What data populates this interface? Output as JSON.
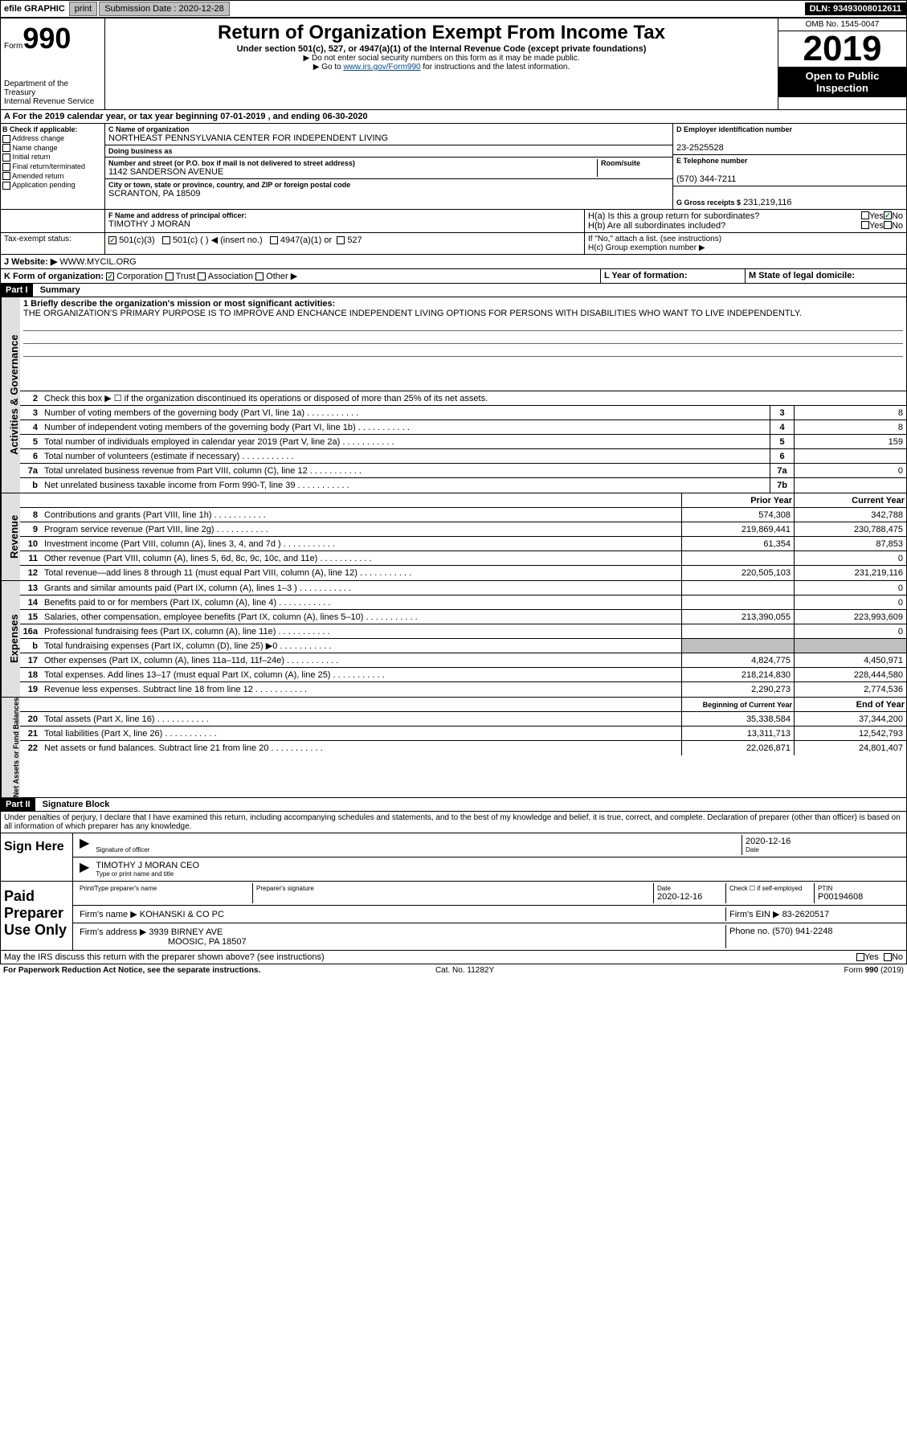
{
  "topbar": {
    "efile": "efile GRAPHIC",
    "print": "print",
    "sub_label": "Submission Date : 2020-12-28",
    "dln": "DLN: 93493008012611"
  },
  "header": {
    "form_word": "Form",
    "form_num": "990",
    "dept": "Department of the Treasury",
    "irs": "Internal Revenue Service",
    "title": "Return of Organization Exempt From Income Tax",
    "subtitle": "Under section 501(c), 527, or 4947(a)(1) of the Internal Revenue Code (except private foundations)",
    "note1": "▶ Do not enter social security numbers on this form as it may be made public.",
    "note2_pre": "▶ Go to ",
    "note2_link": "www.irs.gov/Form990",
    "note2_post": " for instructions and the latest information.",
    "omb": "OMB No. 1545-0047",
    "year": "2019",
    "open": "Open to Public Inspection"
  },
  "period": "A For the 2019 calendar year, or tax year beginning 07-01-2019   , and ending 06-30-2020",
  "boxB": {
    "label": "B Check if applicable:",
    "opts": [
      "Address change",
      "Name change",
      "Initial return",
      "Final return/terminated",
      "Amended return",
      "Application pending"
    ]
  },
  "boxC": {
    "name_label": "C Name of organization",
    "name": "NORTHEAST PENNSYLVANIA CENTER FOR INDEPENDENT LIVING",
    "dba_label": "Doing business as",
    "dba": "",
    "street_label": "Number and street (or P.O. box if mail is not delivered to street address)",
    "room_label": "Room/suite",
    "street": "1142 SANDERSON AVENUE",
    "city_label": "City or town, state or province, country, and ZIP or foreign postal code",
    "city": "SCRANTON, PA  18509"
  },
  "boxD": {
    "label": "D Employer identification number",
    "value": "23-2525528"
  },
  "boxE": {
    "label": "E Telephone number",
    "value": "(570) 344-7211"
  },
  "boxG": {
    "label": "G Gross receipts $",
    "value": "231,219,116"
  },
  "boxF": {
    "label": "F  Name and address of principal officer:",
    "value": "TIMOTHY J MORAN"
  },
  "boxH": {
    "a": "H(a)  Is this a group return for subordinates?",
    "b": "H(b)  Are all subordinates included?",
    "b_note": "If \"No,\" attach a list. (see instructions)",
    "c": "H(c)  Group exemption number ▶",
    "yes": "Yes",
    "no": "No"
  },
  "taxExempt": {
    "label": "Tax-exempt status:",
    "o1": "501(c)(3)",
    "o2": "501(c) (  ) ◀ (insert no.)",
    "o3": "4947(a)(1) or",
    "o4": "527"
  },
  "website": {
    "label": "J   Website: ▶",
    "value": "WWW.MYCIL.ORG"
  },
  "lineK": {
    "label": "K Form of organization:",
    "corp": "Corporation",
    "trust": "Trust",
    "assoc": "Association",
    "other": "Other ▶"
  },
  "lineL": "L Year of formation:",
  "lineM": "M State of legal domicile:",
  "part1": {
    "num": "Part I",
    "title": "Summary"
  },
  "activities": {
    "label": "Activities & Governance",
    "l1": "1  Briefly describe the organization's mission or most significant activities:",
    "mission": "THE ORGANIZATION'S PRIMARY PURPOSE IS TO IMPROVE AND ENCHANCE INDEPENDENT LIVING OPTIONS FOR PERSONS WITH DISABILITIES WHO WANT TO LIVE INDEPENDENTLY.",
    "l2": "Check this box ▶ ☐  if the organization discontinued its operations or disposed of more than 25% of its net assets.",
    "rows": [
      {
        "n": "3",
        "t": "Number of voting members of the governing body (Part VI, line 1a)",
        "box": "3",
        "v": "8"
      },
      {
        "n": "4",
        "t": "Number of independent voting members of the governing body (Part VI, line 1b)",
        "box": "4",
        "v": "8"
      },
      {
        "n": "5",
        "t": "Total number of individuals employed in calendar year 2019 (Part V, line 2a)",
        "box": "5",
        "v": "159"
      },
      {
        "n": "6",
        "t": "Total number of volunteers (estimate if necessary)",
        "box": "6",
        "v": ""
      },
      {
        "n": "7a",
        "t": "Total unrelated business revenue from Part VIII, column (C), line 12",
        "box": "7a",
        "v": "0"
      },
      {
        "n": "b",
        "t": "Net unrelated business taxable income from Form 990-T, line 39",
        "box": "7b",
        "v": ""
      }
    ]
  },
  "revenue": {
    "label": "Revenue",
    "head_prior": "Prior Year",
    "head_current": "Current Year",
    "rows": [
      {
        "n": "8",
        "t": "Contributions and grants (Part VIII, line 1h)",
        "py": "574,308",
        "cy": "342,788"
      },
      {
        "n": "9",
        "t": "Program service revenue (Part VIII, line 2g)",
        "py": "219,869,441",
        "cy": "230,788,475"
      },
      {
        "n": "10",
        "t": "Investment income (Part VIII, column (A), lines 3, 4, and 7d )",
        "py": "61,354",
        "cy": "87,853"
      },
      {
        "n": "11",
        "t": "Other revenue (Part VIII, column (A), lines 5, 6d, 8c, 9c, 10c, and 11e)",
        "py": "",
        "cy": "0"
      },
      {
        "n": "12",
        "t": "Total revenue—add lines 8 through 11 (must equal Part VIII, column (A), line 12)",
        "py": "220,505,103",
        "cy": "231,219,116"
      }
    ]
  },
  "expenses": {
    "label": "Expenses",
    "rows": [
      {
        "n": "13",
        "t": "Grants and similar amounts paid (Part IX, column (A), lines 1–3 )",
        "py": "",
        "cy": "0"
      },
      {
        "n": "14",
        "t": "Benefits paid to or for members (Part IX, column (A), line 4)",
        "py": "",
        "cy": "0"
      },
      {
        "n": "15",
        "t": "Salaries, other compensation, employee benefits (Part IX, column (A), lines 5–10)",
        "py": "213,390,055",
        "cy": "223,993,609"
      },
      {
        "n": "16a",
        "t": "Professional fundraising fees (Part IX, column (A), line 11e)",
        "py": "",
        "cy": "0"
      },
      {
        "n": "b",
        "t": "Total fundraising expenses (Part IX, column (D), line 25) ▶0",
        "py": "shade",
        "cy": "shade"
      },
      {
        "n": "17",
        "t": "Other expenses (Part IX, column (A), lines 11a–11d, 11f–24e)",
        "py": "4,824,775",
        "cy": "4,450,971"
      },
      {
        "n": "18",
        "t": "Total expenses. Add lines 13–17 (must equal Part IX, column (A), line 25)",
        "py": "218,214,830",
        "cy": "228,444,580"
      },
      {
        "n": "19",
        "t": "Revenue less expenses. Subtract line 18 from line 12",
        "py": "2,290,273",
        "cy": "2,774,536"
      }
    ]
  },
  "netassets": {
    "label": "Net Assets or Fund Balances",
    "head_begin": "Beginning of Current Year",
    "head_end": "End of Year",
    "rows": [
      {
        "n": "20",
        "t": "Total assets (Part X, line 16)",
        "py": "35,338,584",
        "cy": "37,344,200"
      },
      {
        "n": "21",
        "t": "Total liabilities (Part X, line 26)",
        "py": "13,311,713",
        "cy": "12,542,793"
      },
      {
        "n": "22",
        "t": "Net assets or fund balances. Subtract line 21 from line 20",
        "py": "22,026,871",
        "cy": "24,801,407"
      }
    ]
  },
  "part2": {
    "num": "Part II",
    "title": "Signature Block"
  },
  "jurat": "Under penalties of perjury, I declare that I have examined this return, including accompanying schedules and statements, and to the best of my knowledge and belief, it is true, correct, and complete. Declaration of preparer (other than officer) is based on all information of which preparer has any knowledge.",
  "sign": {
    "here": "Sign Here",
    "sig_label": "Signature of officer",
    "date_label": "Date",
    "date": "2020-12-16",
    "name": "TIMOTHY J MORAN CEO",
    "name_label": "Type or print name and title"
  },
  "paid": {
    "label": "Paid Preparer Use Only",
    "h1": "Print/Type preparer's name",
    "h2": "Preparer's signature",
    "h3": "Date",
    "h4": "Check ☐ if self-employed",
    "h5": "PTIN",
    "date": "2020-12-16",
    "ptin": "P00194608",
    "firm_label": "Firm's name    ▶",
    "firm": "KOHANSKI & CO PC",
    "ein_label": "Firm's EIN ▶",
    "ein": "83-2620517",
    "addr_label": "Firm's address ▶",
    "addr1": "3939 BIRNEY AVE",
    "addr2": "MOOSIC, PA  18507",
    "phone_label": "Phone no.",
    "phone": "(570) 941-2248"
  },
  "discuss": "May the IRS discuss this return with the preparer shown above? (see instructions)",
  "bottom": {
    "pra": "For Paperwork Reduction Act Notice, see the separate instructions.",
    "cat": "Cat. No. 11282Y",
    "form": "Form 990 (2019)"
  }
}
